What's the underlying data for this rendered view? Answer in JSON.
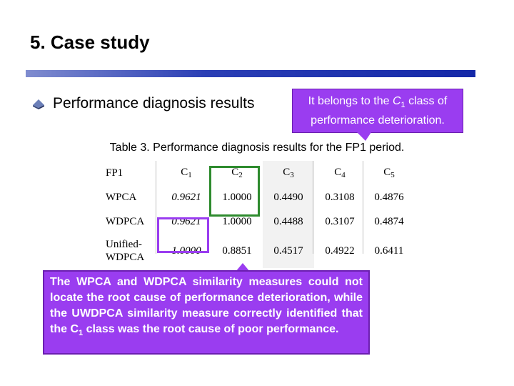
{
  "slide": {
    "title": "5. Case study",
    "bullet_icon": "bullet-diamond-icon",
    "bullet": "Performance diagnosis results"
  },
  "callout_top": {
    "pre": "It belongs to the ",
    "class_letter": "C",
    "class_sub": "1",
    "post_line1": " class of",
    "line2": "performance deterioration."
  },
  "table": {
    "caption": "Table 3. Performance diagnosis results for the FP1 period.",
    "header": {
      "label": "FP1",
      "cols": [
        {
          "letter": "C",
          "sub": "1"
        },
        {
          "letter": "C",
          "sub": "2"
        },
        {
          "letter": "C",
          "sub": "3"
        },
        {
          "letter": "C",
          "sub": "4"
        },
        {
          "letter": "C",
          "sub": "5"
        }
      ]
    },
    "rows": [
      {
        "label": "WPCA",
        "values": [
          "0.9621",
          "1.0000",
          "0.4490",
          "0.3108",
          "0.4876"
        ]
      },
      {
        "label": "WDPCA",
        "values": [
          "0.9621",
          "1.0000",
          "0.4488",
          "0.3107",
          "0.4874"
        ]
      },
      {
        "label_line1": "Unified-",
        "label_line2": "WDPCA",
        "values": [
          "1.0000",
          "0.8851",
          "0.4517",
          "0.4922",
          "0.6411"
        ]
      }
    ]
  },
  "callout_bottom": {
    "text_part1": "The WPCA and WDPCA similarity measures could not locate the root cause of performance deterioration, while the UWDPCA similarity measure correctly identified that the C",
    "sub": "1",
    "text_part2": " class was the root cause of poor performance."
  },
  "colors": {
    "callout": "#9a3df0",
    "highlight_green": "#2e8b2e",
    "title_bar": "#1428a8"
  }
}
